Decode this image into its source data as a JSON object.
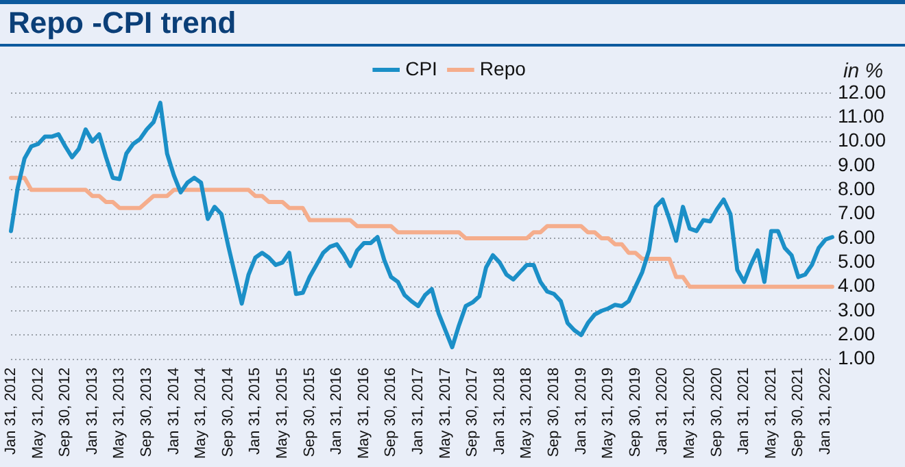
{
  "chart_data": {
    "type": "line",
    "title": "Repo -CPI trend",
    "ylabel": "in %",
    "categories": [
      "Jan 31, 2012",
      null,
      null,
      null,
      "May 31, 2012",
      null,
      null,
      null,
      "Sep 30, 2012",
      null,
      null,
      null,
      "Jan 31, 2013",
      null,
      null,
      null,
      "May 31, 2013",
      null,
      null,
      null,
      "Sep 30, 2013",
      null,
      null,
      null,
      "Jan 31, 2014",
      null,
      null,
      null,
      "May 31, 2014",
      null,
      null,
      null,
      "Sep 30, 2014",
      null,
      null,
      null,
      "Jan 31, 2015",
      null,
      null,
      null,
      "May 31, 2015",
      null,
      null,
      null,
      "Sep 30, 2015",
      null,
      null,
      null,
      "Jan 31, 2016",
      null,
      null,
      null,
      "May 31, 2016",
      null,
      null,
      null,
      "Sep 30, 2016",
      null,
      null,
      null,
      "Jan 31, 2017",
      null,
      null,
      null,
      "May 31, 2017",
      null,
      null,
      null,
      "Sep 30, 2017",
      null,
      null,
      null,
      "Jan 31, 2018",
      null,
      null,
      null,
      "May 31, 2018",
      null,
      null,
      null,
      "Sep 30, 2018",
      null,
      null,
      null,
      "Jan 31, 2019",
      null,
      null,
      null,
      "May 31, 2019",
      null,
      null,
      null,
      "Sep 30, 2019",
      null,
      null,
      null,
      "Jan 31, 2020",
      null,
      null,
      null,
      "May 31, 2020",
      null,
      null,
      null,
      "Sep 30, 2020",
      null,
      null,
      null,
      "Jan 31, 2021",
      null,
      null,
      null,
      "May 31, 2021",
      null,
      null,
      null,
      "Sep 30, 2021",
      null,
      null,
      null,
      "Jan 31, 2022",
      null
    ],
    "series": [
      {
        "name": "CPI",
        "color": "#1b8fc7",
        "values": [
          6.3,
          8.1,
          9.3,
          9.8,
          9.9,
          10.2,
          10.2,
          10.3,
          9.8,
          9.35,
          9.7,
          10.5,
          10.0,
          10.3,
          9.35,
          8.5,
          8.45,
          9.5,
          9.9,
          10.1,
          10.5,
          10.8,
          11.6,
          9.5,
          8.6,
          7.9,
          8.3,
          8.5,
          8.3,
          6.8,
          7.3,
          7.0,
          5.7,
          4.5,
          3.3,
          4.5,
          5.2,
          5.4,
          5.2,
          4.9,
          5.0,
          5.4,
          3.7,
          3.75,
          4.4,
          4.9,
          5.4,
          5.65,
          5.75,
          5.35,
          4.85,
          5.5,
          5.8,
          5.8,
          6.05,
          5.1,
          4.4,
          4.2,
          3.65,
          3.4,
          3.2,
          3.65,
          3.9,
          2.9,
          2.2,
          1.5,
          2.4,
          3.2,
          3.35,
          3.6,
          4.8,
          5.3,
          5.0,
          4.5,
          4.3,
          4.6,
          4.9,
          4.9,
          4.2,
          3.8,
          3.7,
          3.4,
          2.5,
          2.2,
          2.0,
          2.5,
          2.85,
          3.0,
          3.1,
          3.25,
          3.2,
          3.4,
          4.0,
          4.6,
          5.5,
          7.3,
          7.6,
          6.8,
          5.9,
          7.3,
          6.4,
          6.3,
          6.75,
          6.7,
          7.2,
          7.6,
          7.0,
          4.7,
          4.2,
          4.9,
          5.5,
          4.2,
          6.3,
          6.3,
          5.6,
          5.3,
          4.4,
          4.5,
          4.9,
          5.6,
          5.95,
          6.05
        ]
      },
      {
        "name": "Repo",
        "color": "#f5ad8c",
        "values": [
          8.5,
          8.5,
          8.5,
          8.0,
          8.0,
          8.0,
          8.0,
          8.0,
          8.0,
          8.0,
          8.0,
          8.0,
          7.75,
          7.75,
          7.5,
          7.5,
          7.25,
          7.25,
          7.25,
          7.25,
          7.5,
          7.75,
          7.75,
          7.75,
          8.0,
          8.0,
          8.0,
          8.0,
          8.0,
          8.0,
          8.0,
          8.0,
          8.0,
          8.0,
          8.0,
          8.0,
          7.75,
          7.75,
          7.5,
          7.5,
          7.5,
          7.25,
          7.25,
          7.25,
          6.75,
          6.75,
          6.75,
          6.75,
          6.75,
          6.75,
          6.75,
          6.5,
          6.5,
          6.5,
          6.5,
          6.5,
          6.5,
          6.25,
          6.25,
          6.25,
          6.25,
          6.25,
          6.25,
          6.25,
          6.25,
          6.25,
          6.25,
          6.0,
          6.0,
          6.0,
          6.0,
          6.0,
          6.0,
          6.0,
          6.0,
          6.0,
          6.0,
          6.25,
          6.25,
          6.5,
          6.5,
          6.5,
          6.5,
          6.5,
          6.5,
          6.25,
          6.25,
          6.0,
          6.0,
          5.75,
          5.75,
          5.4,
          5.4,
          5.15,
          5.15,
          5.15,
          5.15,
          5.15,
          4.4,
          4.4,
          4.0,
          4.0,
          4.0,
          4.0,
          4.0,
          4.0,
          4.0,
          4.0,
          4.0,
          4.0,
          4.0,
          4.0,
          4.0,
          4.0,
          4.0,
          4.0,
          4.0,
          4.0,
          4.0,
          4.0,
          4.0,
          4.0
        ]
      }
    ],
    "ylim": [
      1,
      12
    ],
    "yticks": [
      {
        "value": 1,
        "label": "1.00"
      },
      {
        "value": 2,
        "label": "2.00"
      },
      {
        "value": 3,
        "label": "3.00"
      },
      {
        "value": 4,
        "label": "4.00"
      },
      {
        "value": 5,
        "label": "5.00"
      },
      {
        "value": 6,
        "label": "6.00"
      },
      {
        "value": 7,
        "label": "7.00"
      },
      {
        "value": 8,
        "label": "8.00"
      },
      {
        "value": 9,
        "label": "9.00"
      },
      {
        "value": 10,
        "label": "10.00"
      },
      {
        "value": 11,
        "label": "11.00"
      },
      {
        "value": 12,
        "label": "12.00"
      }
    ],
    "grid": "y",
    "legend": "top",
    "marker": "none",
    "line_style": "solid"
  }
}
